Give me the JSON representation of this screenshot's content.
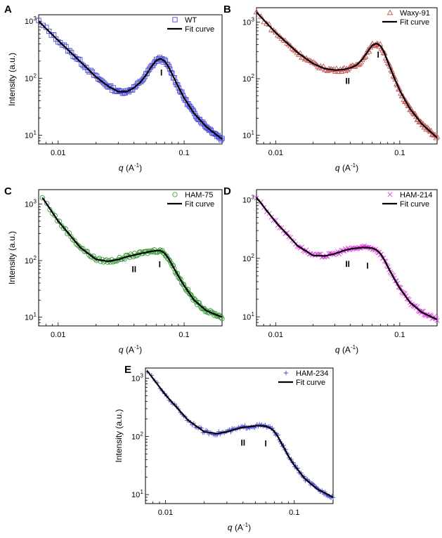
{
  "chart_data": [
    {
      "type": "scatter",
      "panel": "A",
      "xscale": "log",
      "yscale": "log",
      "xlim": [
        0.007,
        0.2
      ],
      "ylim": [
        7,
        1300
      ],
      "xlabel": "q (A-1)",
      "ylabel": "Intensity (a.u.)",
      "x_ticks": [
        {
          "value": 0.01,
          "label": "0.01"
        },
        {
          "value": 0.1,
          "label": "0.1"
        }
      ],
      "y_ticks": [
        {
          "value": 10,
          "label": "10",
          "exp": "1"
        },
        {
          "value": 100,
          "label": "10",
          "exp": "2"
        },
        {
          "value": 1000,
          "label": "10",
          "exp": "3"
        }
      ],
      "legend_position": "top-right",
      "series": [
        {
          "name": "WT",
          "marker": "square",
          "color": "#4a4ad8"
        },
        {
          "name": "Fit curve",
          "marker": "line",
          "color": "#000000"
        }
      ],
      "curve": {
        "q": [
          0.007,
          0.01,
          0.015,
          0.02,
          0.025,
          0.03,
          0.035,
          0.04,
          0.045,
          0.05,
          0.055,
          0.06,
          0.065,
          0.07,
          0.075,
          0.08,
          0.09,
          0.1,
          0.12,
          0.15,
          0.2
        ],
        "I": [
          1000,
          460,
          195,
          105,
          72,
          58,
          58,
          68,
          85,
          115,
          160,
          205,
          220,
          200,
          160,
          120,
          70,
          45,
          24,
          14,
          8.5
        ]
      },
      "annotations": [
        {
          "text": "I",
          "q": 0.066,
          "I": 125
        }
      ]
    },
    {
      "type": "scatter",
      "panel": "B",
      "xscale": "log",
      "yscale": "log",
      "xlim": [
        0.007,
        0.2
      ],
      "ylim": [
        7,
        1800
      ],
      "xlabel": "q (A-1)",
      "ylabel": "",
      "x_ticks": [
        {
          "value": 0.01,
          "label": "0.01"
        },
        {
          "value": 0.1,
          "label": "0.1"
        }
      ],
      "y_ticks": [
        {
          "value": 10,
          "label": "10",
          "exp": "1"
        },
        {
          "value": 100,
          "label": "10",
          "exp": "2"
        },
        {
          "value": 1000,
          "label": "10",
          "exp": "3"
        }
      ],
      "legend_position": "top-right",
      "series": [
        {
          "name": "Waxy-91",
          "marker": "triangle",
          "color": "#c85a5a"
        },
        {
          "name": "Fit curve",
          "marker": "line",
          "color": "#000000"
        }
      ],
      "curve": {
        "q": [
          0.007,
          0.01,
          0.015,
          0.02,
          0.025,
          0.03,
          0.035,
          0.04,
          0.045,
          0.05,
          0.055,
          0.06,
          0.065,
          0.07,
          0.075,
          0.08,
          0.09,
          0.1,
          0.12,
          0.15,
          0.2
        ],
        "I": [
          1500,
          650,
          290,
          185,
          150,
          142,
          145,
          155,
          175,
          220,
          300,
          390,
          420,
          380,
          290,
          200,
          105,
          62,
          30,
          16,
          9
        ]
      },
      "annotations": [
        {
          "text": "II",
          "q": 0.038,
          "I": 90
        },
        {
          "text": "I",
          "q": 0.067,
          "I": 265
        }
      ]
    },
    {
      "type": "scatter",
      "panel": "C",
      "xscale": "log",
      "yscale": "log",
      "xlim": [
        0.007,
        0.2
      ],
      "ylim": [
        7,
        1800
      ],
      "xlabel": "q (A-1)",
      "ylabel": "Intensity (a.u.)",
      "x_ticks": [
        {
          "value": 0.01,
          "label": "0.01"
        },
        {
          "value": 0.1,
          "label": "0.1"
        }
      ],
      "y_ticks": [
        {
          "value": 10,
          "label": "10",
          "exp": "1"
        },
        {
          "value": 100,
          "label": "10",
          "exp": "2"
        },
        {
          "value": 1000,
          "label": "10",
          "exp": "3"
        }
      ],
      "legend_position": "top-right",
      "series": [
        {
          "name": "HAM-75",
          "marker": "circle",
          "color": "#3a9a3a"
        },
        {
          "name": "Fit curve",
          "marker": "line",
          "color": "#000000"
        }
      ],
      "curve": {
        "q": [
          0.0075,
          0.01,
          0.015,
          0.02,
          0.025,
          0.03,
          0.035,
          0.04,
          0.045,
          0.05,
          0.055,
          0.06,
          0.065,
          0.07,
          0.075,
          0.08,
          0.09,
          0.1,
          0.12,
          0.15,
          0.2
        ],
        "I": [
          1300,
          500,
          170,
          105,
          97,
          104,
          117,
          125,
          133,
          140,
          146,
          150,
          150,
          135,
          110,
          85,
          53,
          36,
          20,
          13,
          10
        ]
      },
      "annotations": [
        {
          "text": "II",
          "q": 0.04,
          "I": 70
        },
        {
          "text": "I",
          "q": 0.064,
          "I": 85
        }
      ]
    },
    {
      "type": "scatter",
      "panel": "D",
      "xscale": "log",
      "yscale": "log",
      "xlim": [
        0.007,
        0.2
      ],
      "ylim": [
        7,
        1500
      ],
      "xlabel": "q (A-1)",
      "ylabel": "",
      "x_ticks": [
        {
          "value": 0.01,
          "label": "0.01"
        },
        {
          "value": 0.1,
          "label": "0.1"
        }
      ],
      "y_ticks": [
        {
          "value": 10,
          "label": "10",
          "exp": "1"
        },
        {
          "value": 100,
          "label": "10",
          "exp": "2"
        },
        {
          "value": 1000,
          "label": "10",
          "exp": "3"
        }
      ],
      "legend_position": "top-right",
      "series": [
        {
          "name": "HAM-214",
          "marker": "cross",
          "color": "#e040e0"
        },
        {
          "name": "Fit curve",
          "marker": "line",
          "color": "#000000"
        }
      ],
      "curve": {
        "q": [
          0.007,
          0.01,
          0.015,
          0.02,
          0.025,
          0.03,
          0.035,
          0.04,
          0.045,
          0.05,
          0.055,
          0.06,
          0.065,
          0.07,
          0.075,
          0.08,
          0.09,
          0.1,
          0.12,
          0.15,
          0.2
        ],
        "I": [
          1100,
          420,
          165,
          112,
          110,
          120,
          135,
          145,
          150,
          153,
          153,
          150,
          140,
          120,
          95,
          73,
          45,
          31,
          18,
          12,
          9
        ]
      },
      "annotations": [
        {
          "text": "II",
          "q": 0.038,
          "I": 80
        },
        {
          "text": "I",
          "q": 0.055,
          "I": 75
        }
      ]
    },
    {
      "type": "scatter",
      "panel": "E",
      "xscale": "log",
      "yscale": "log",
      "xlim": [
        0.007,
        0.2
      ],
      "ylim": [
        7,
        1500
      ],
      "xlabel": "q (A-1)",
      "ylabel": "Intensity (a.u.)",
      "x_ticks": [
        {
          "value": 0.01,
          "label": "0.01"
        },
        {
          "value": 0.1,
          "label": "0.1"
        }
      ],
      "y_ticks": [
        {
          "value": 10,
          "label": "10",
          "exp": "1"
        },
        {
          "value": 100,
          "label": "10",
          "exp": "2"
        },
        {
          "value": 1000,
          "label": "10",
          "exp": "3"
        }
      ],
      "legend_position": "top-right",
      "series": [
        {
          "name": "HAM-234",
          "marker": "plus",
          "color": "#4a4ad8"
        },
        {
          "name": "Fit curve",
          "marker": "line",
          "color": "#000000"
        }
      ],
      "curve": {
        "q": [
          0.0072,
          0.01,
          0.015,
          0.02,
          0.025,
          0.03,
          0.035,
          0.04,
          0.045,
          0.05,
          0.055,
          0.06,
          0.065,
          0.07,
          0.075,
          0.08,
          0.09,
          0.1,
          0.12,
          0.15,
          0.2
        ],
        "I": [
          1350,
          520,
          190,
          120,
          112,
          120,
          133,
          143,
          148,
          152,
          152,
          150,
          140,
          122,
          97,
          75,
          46,
          32,
          19,
          12.5,
          9
        ]
      },
      "annotations": [
        {
          "text": "II",
          "q": 0.04,
          "I": 78
        },
        {
          "text": "I",
          "q": 0.06,
          "I": 75
        }
      ]
    }
  ]
}
